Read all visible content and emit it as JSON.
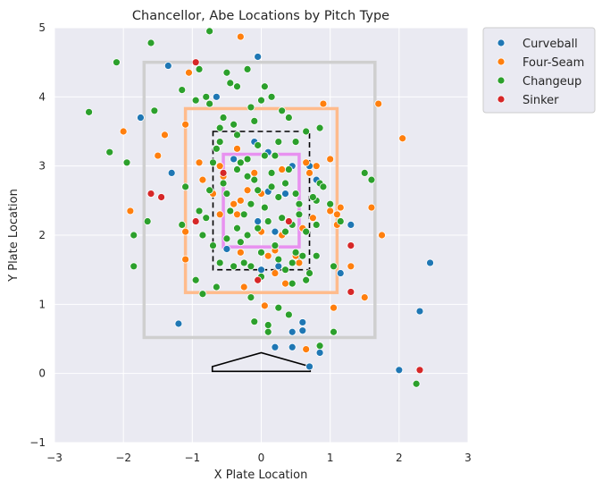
{
  "chart_data": {
    "type": "scatter",
    "title": "Chancellor, Abe Locations by Pitch Type",
    "xlabel": "X Plate Location",
    "ylabel": "Y Plate Location",
    "xlim": [
      -3,
      3
    ],
    "ylim": [
      -1,
      5
    ],
    "x_ticks": [
      "−3",
      "−2",
      "−1",
      "0",
      "1",
      "2",
      "3"
    ],
    "y_ticks": [
      "−1",
      "0",
      "1",
      "2",
      "3",
      "4",
      "5"
    ],
    "grid": true,
    "legend_position": "outside-upper-right",
    "series": [
      {
        "name": "Curveball",
        "color": "#1f77b4",
        "points": [
          [
            -1.75,
            3.7
          ],
          [
            -1.35,
            4.45
          ],
          [
            -1.3,
            2.9
          ],
          [
            -1.2,
            0.72
          ],
          [
            -0.05,
            4.58
          ],
          [
            0.1,
            2.63
          ],
          [
            -0.4,
            3.1
          ],
          [
            0.2,
            0.38
          ],
          [
            0.45,
            0.38
          ],
          [
            0.45,
            0.6
          ],
          [
            0.6,
            0.74
          ],
          [
            0.6,
            0.62
          ],
          [
            0.7,
            0.1
          ],
          [
            0.85,
            0.3
          ],
          [
            0.8,
            2.8
          ],
          [
            1.15,
            1.45
          ],
          [
            1.3,
            2.15
          ],
          [
            2.3,
            0.9
          ],
          [
            2.45,
            1.6
          ],
          [
            2.0,
            0.05
          ],
          [
            0.35,
            2.6
          ],
          [
            0.1,
            3.2
          ],
          [
            -0.5,
            1.8
          ],
          [
            0.2,
            2.05
          ],
          [
            0.55,
            1.7
          ],
          [
            -0.1,
            3.35
          ],
          [
            0.0,
            1.5
          ],
          [
            -0.65,
            4.0
          ],
          [
            0.45,
            3.0
          ],
          [
            0.7,
            3.0
          ],
          [
            -0.05,
            2.2
          ],
          [
            0.25,
            1.55
          ]
        ]
      },
      {
        "name": "Four-Seam",
        "color": "#ff7f0e",
        "points": [
          [
            -0.3,
            4.87
          ],
          [
            -1.05,
            4.35
          ],
          [
            -1.4,
            3.45
          ],
          [
            -2.0,
            3.5
          ],
          [
            -1.9,
            2.35
          ],
          [
            -1.1,
            3.6
          ],
          [
            -1.1,
            2.05
          ],
          [
            -1.1,
            1.65
          ],
          [
            -0.9,
            3.05
          ],
          [
            -0.85,
            2.8
          ],
          [
            -0.7,
            2.6
          ],
          [
            -0.6,
            3.0
          ],
          [
            -0.55,
            2.85
          ],
          [
            -0.6,
            2.3
          ],
          [
            -0.35,
            2.3
          ],
          [
            -0.3,
            2.5
          ],
          [
            -0.4,
            2.45
          ],
          [
            -0.3,
            1.75
          ],
          [
            -0.25,
            1.25
          ],
          [
            -0.2,
            2.65
          ],
          [
            0.0,
            2.6
          ],
          [
            0.05,
            0.98
          ],
          [
            0.1,
            1.7
          ],
          [
            0.2,
            1.45
          ],
          [
            0.35,
            1.3
          ],
          [
            0.3,
            2.0
          ],
          [
            0.5,
            1.7
          ],
          [
            0.55,
            1.6
          ],
          [
            0.6,
            2.1
          ],
          [
            0.7,
            2.9
          ],
          [
            0.75,
            2.25
          ],
          [
            0.8,
            3.0
          ],
          [
            0.65,
            3.05
          ],
          [
            0.3,
            2.95
          ],
          [
            0.65,
            0.35
          ],
          [
            0.9,
            3.9
          ],
          [
            1.0,
            3.1
          ],
          [
            1.05,
            0.95
          ],
          [
            1.0,
            2.35
          ],
          [
            1.1,
            2.15
          ],
          [
            1.15,
            2.4
          ],
          [
            1.3,
            1.55
          ],
          [
            1.5,
            1.1
          ],
          [
            1.6,
            2.4
          ],
          [
            1.7,
            3.9
          ],
          [
            1.75,
            2.0
          ],
          [
            2.05,
            3.4
          ],
          [
            1.1,
            2.3
          ],
          [
            -0.35,
            3.25
          ],
          [
            0.2,
            1.78
          ],
          [
            0.0,
            2.05
          ],
          [
            -0.1,
            2.9
          ],
          [
            -1.5,
            3.15
          ]
        ]
      },
      {
        "name": "Changeup",
        "color": "#2ca02c",
        "points": [
          [
            -2.5,
            3.78
          ],
          [
            -2.1,
            4.5
          ],
          [
            -1.6,
            4.78
          ],
          [
            -1.55,
            3.8
          ],
          [
            -1.65,
            2.2
          ],
          [
            -1.85,
            2.0
          ],
          [
            -1.85,
            1.55
          ],
          [
            -1.95,
            3.05
          ],
          [
            -2.2,
            3.2
          ],
          [
            -1.15,
            2.15
          ],
          [
            -1.1,
            2.7
          ],
          [
            -0.9,
            4.4
          ],
          [
            -0.8,
            4.0
          ],
          [
            -0.75,
            4.95
          ],
          [
            -0.75,
            3.9
          ],
          [
            -0.6,
            3.55
          ],
          [
            -0.65,
            3.25
          ],
          [
            -0.7,
            3.05
          ],
          [
            -0.5,
            4.35
          ],
          [
            -0.45,
            4.2
          ],
          [
            -0.35,
            4.15
          ],
          [
            -0.2,
            4.4
          ],
          [
            -0.15,
            3.85
          ],
          [
            -0.1,
            3.65
          ],
          [
            0.05,
            4.15
          ],
          [
            0.15,
            4.0
          ],
          [
            0.3,
            3.8
          ],
          [
            0.4,
            3.7
          ],
          [
            -0.95,
            3.95
          ],
          [
            -1.15,
            4.1
          ],
          [
            -0.55,
            3.7
          ],
          [
            -0.4,
            3.6
          ],
          [
            -0.3,
            3.05
          ],
          [
            -0.2,
            2.85
          ],
          [
            -0.05,
            3.3
          ],
          [
            0.05,
            3.15
          ],
          [
            -0.1,
            2.8
          ],
          [
            0.05,
            2.4
          ],
          [
            0.15,
            2.9
          ],
          [
            0.25,
            2.55
          ],
          [
            0.3,
            2.25
          ],
          [
            0.35,
            2.05
          ],
          [
            0.4,
            2.95
          ],
          [
            0.55,
            2.45
          ],
          [
            0.55,
            2.3
          ],
          [
            0.5,
            1.75
          ],
          [
            0.45,
            1.6
          ],
          [
            0.6,
            1.7
          ],
          [
            -0.8,
            2.25
          ],
          [
            -0.85,
            2.0
          ],
          [
            -0.7,
            1.85
          ],
          [
            -0.6,
            1.6
          ],
          [
            -0.5,
            2.6
          ],
          [
            -0.45,
            2.35
          ],
          [
            -0.35,
            2.1
          ],
          [
            -0.3,
            1.9
          ],
          [
            -0.25,
            1.6
          ],
          [
            -0.15,
            2.45
          ],
          [
            -0.05,
            2.1
          ],
          [
            0.1,
            2.2
          ],
          [
            0.2,
            1.85
          ],
          [
            0.25,
            1.65
          ],
          [
            0.35,
            1.5
          ],
          [
            0.0,
            1.75
          ],
          [
            -0.15,
            1.55
          ],
          [
            -0.4,
            1.55
          ],
          [
            -0.65,
            1.25
          ],
          [
            -0.95,
            1.35
          ],
          [
            -0.85,
            1.15
          ],
          [
            -0.15,
            1.1
          ],
          [
            -0.1,
            0.75
          ],
          [
            0.1,
            0.7
          ],
          [
            0.1,
            0.6
          ],
          [
            0.25,
            0.95
          ],
          [
            0.4,
            0.85
          ],
          [
            0.45,
            1.3
          ],
          [
            0.65,
            1.35
          ],
          [
            0.7,
            1.45
          ],
          [
            0.8,
            1.7
          ],
          [
            0.8,
            2.15
          ],
          [
            0.8,
            2.5
          ],
          [
            0.85,
            2.75
          ],
          [
            0.9,
            2.7
          ],
          [
            0.85,
            3.55
          ],
          [
            1.0,
            2.45
          ],
          [
            1.05,
            1.55
          ],
          [
            1.05,
            0.6
          ],
          [
            1.15,
            2.2
          ],
          [
            1.5,
            2.9
          ],
          [
            1.6,
            2.8
          ],
          [
            0.85,
            0.4
          ],
          [
            2.25,
            -0.15
          ],
          [
            -0.35,
            3.45
          ],
          [
            0.0,
            3.95
          ],
          [
            0.25,
            3.35
          ],
          [
            -0.55,
            2.75
          ],
          [
            -0.2,
            3.1
          ],
          [
            0.5,
            3.35
          ],
          [
            0.65,
            3.5
          ],
          [
            0.75,
            2.55
          ],
          [
            -0.9,
            2.35
          ],
          [
            -0.6,
            3.35
          ],
          [
            -0.25,
            2.3
          ],
          [
            0.15,
            2.7
          ],
          [
            0.35,
            2.75
          ],
          [
            -0.5,
            1.95
          ],
          [
            0.65,
            2.05
          ],
          [
            -0.2,
            2.0
          ],
          [
            0.45,
            2.15
          ],
          [
            -0.75,
            2.65
          ],
          [
            -0.05,
            2.65
          ],
          [
            0.2,
            3.15
          ],
          [
            0.5,
            2.6
          ],
          [
            -0.35,
            2.95
          ],
          [
            0.0,
            1.4
          ]
        ]
      },
      {
        "name": "Sinker",
        "color": "#d62728",
        "points": [
          [
            -0.95,
            4.5
          ],
          [
            -1.6,
            2.6
          ],
          [
            -1.45,
            2.55
          ],
          [
            -0.95,
            2.2
          ],
          [
            0.4,
            2.2
          ],
          [
            1.3,
            1.85
          ],
          [
            1.3,
            1.18
          ],
          [
            -0.05,
            1.35
          ],
          [
            2.3,
            0.05
          ],
          [
            -0.55,
            2.9
          ]
        ]
      }
    ],
    "strike_zones": [
      {
        "x0": -1.7,
        "x1": 1.65,
        "y0": 0.52,
        "y1": 4.5,
        "color": "#cfcfcf"
      },
      {
        "x0": -1.1,
        "x1": 1.1,
        "y0": 1.17,
        "y1": 3.83,
        "color": "#ffbb8c"
      },
      {
        "x0": -0.7,
        "x1": 0.7,
        "y0": 1.5,
        "y1": 3.5,
        "color": "#000000",
        "dashed": true
      },
      {
        "x0": -0.55,
        "x1": 0.55,
        "y0": 1.83,
        "y1": 3.17,
        "color": "#e891f0"
      }
    ],
    "home_plate": [
      [
        -0.71,
        0.1
      ],
      [
        -0.71,
        0.03
      ],
      [
        0.71,
        0.03
      ],
      [
        0.71,
        0.1
      ],
      [
        0.0,
        0.3
      ]
    ]
  }
}
